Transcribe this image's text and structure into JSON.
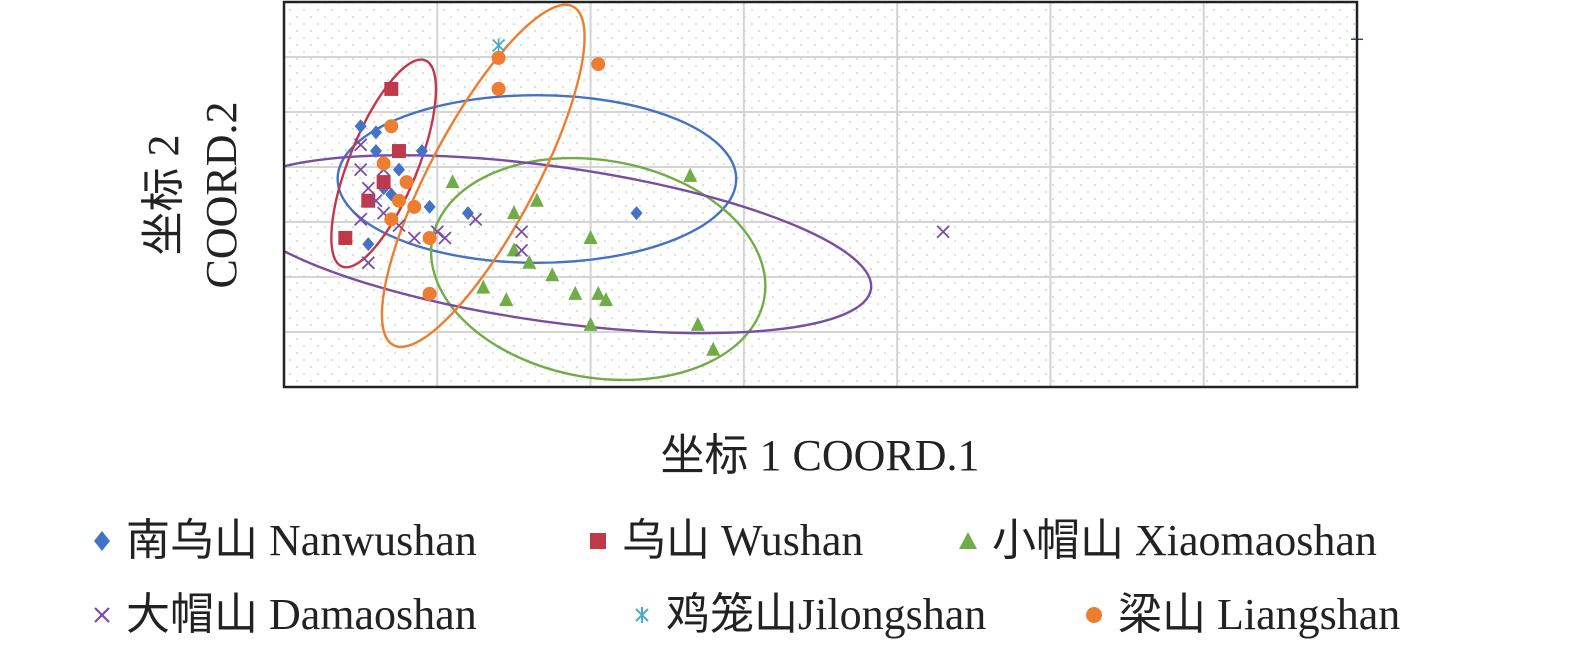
{
  "chart_data": {
    "type": "scatter",
    "xlabel": "坐标 1 COORD.1",
    "ylabel_line1": "坐标 2",
    "ylabel_line2": "COORD.2",
    "x_ticks_hidden": true,
    "y_ticks_hidden": true,
    "grid": true,
    "xlim": [
      0,
      14
    ],
    "ylim": [
      0,
      6.2
    ],
    "legend_placement": "bottom",
    "series": [
      {
        "name": "南乌山 Nanwushan",
        "color": "#4472C4",
        "marker": "diamond",
        "points": [
          [
            1.0,
            4.2
          ],
          [
            1.1,
            2.3
          ],
          [
            1.2,
            4.1
          ],
          [
            1.2,
            3.8
          ],
          [
            1.3,
            3.2
          ],
          [
            1.4,
            3.1
          ],
          [
            1.5,
            3.5
          ],
          [
            1.8,
            3.8
          ],
          [
            1.9,
            2.9
          ],
          [
            2.4,
            2.8
          ],
          [
            4.6,
            2.8
          ]
        ],
        "ellipse": {
          "cx": 3.3,
          "cy": 3.35,
          "rx": 2.6,
          "ry": 1.35,
          "angle": 0
        }
      },
      {
        "name": "乌山 Wushan",
        "color": "#C0394B",
        "marker": "square",
        "points": [
          [
            1.4,
            4.8
          ],
          [
            1.5,
            3.8
          ],
          [
            1.3,
            3.3
          ],
          [
            1.1,
            3.0
          ],
          [
            0.8,
            2.4
          ]
        ],
        "ellipse": {
          "cx": 1.3,
          "cy": 3.6,
          "rx": 1.45,
          "ry": 0.55,
          "angle": 68
        }
      },
      {
        "name": "小帽山 Xiaomaoshan",
        "color": "#70AD47",
        "marker": "triangle",
        "points": [
          [
            2.2,
            3.3
          ],
          [
            3.0,
            2.8
          ],
          [
            3.3,
            3.0
          ],
          [
            5.3,
            3.4
          ],
          [
            4.0,
            2.4
          ],
          [
            3.0,
            2.2
          ],
          [
            3.2,
            2.0
          ],
          [
            3.5,
            1.8
          ],
          [
            2.9,
            1.4
          ],
          [
            3.8,
            1.5
          ],
          [
            5.4,
            1.0
          ],
          [
            4.0,
            1.0
          ],
          [
            5.6,
            0.6
          ],
          [
            4.1,
            1.5
          ],
          [
            2.6,
            1.6
          ],
          [
            4.2,
            1.4
          ]
        ],
        "ellipse": {
          "cx": 4.1,
          "cy": 1.9,
          "rx": 2.2,
          "ry": 1.75,
          "angle": -10
        }
      },
      {
        "name": "大帽山 Damaoshan",
        "color": "#7A4DA3",
        "marker": "x",
        "points": [
          [
            1.0,
            3.5
          ],
          [
            1.1,
            3.2
          ],
          [
            1.2,
            3.0
          ],
          [
            1.3,
            2.8
          ],
          [
            1.5,
            2.6
          ],
          [
            1.7,
            2.4
          ],
          [
            2.5,
            2.7
          ],
          [
            3.1,
            2.2
          ],
          [
            3.1,
            2.5
          ],
          [
            1.1,
            2.0
          ],
          [
            2.0,
            2.5
          ],
          [
            1.0,
            3.9
          ],
          [
            1.3,
            3.5
          ],
          [
            2.1,
            2.4
          ],
          [
            1.0,
            2.7
          ],
          [
            8.6,
            2.5
          ]
        ],
        "ellipse": {
          "cx": 3.5,
          "cy": 2.3,
          "rx": 4.2,
          "ry": 1.25,
          "angle": -8
        }
      },
      {
        "name": "鸡笼山Jilongshan",
        "color": "#4BACC6",
        "marker": "asterisk",
        "points": [
          [
            2.8,
            5.5
          ]
        ],
        "ellipse": null
      },
      {
        "name": "梁山 Liangshan",
        "color": "#ED7D31",
        "marker": "circle",
        "points": [
          [
            2.8,
            5.3
          ],
          [
            4.1,
            5.2
          ],
          [
            2.8,
            4.8
          ],
          [
            1.4,
            4.2
          ],
          [
            1.3,
            3.6
          ],
          [
            1.6,
            3.3
          ],
          [
            1.5,
            3.0
          ],
          [
            1.4,
            2.7
          ],
          [
            1.7,
            2.9
          ],
          [
            1.9,
            2.4
          ],
          [
            1.9,
            1.5
          ]
        ],
        "ellipse": {
          "cx": 2.6,
          "cy": 3.4,
          "rx": 2.5,
          "ry": 0.85,
          "angle": 62
        }
      },
      {
        "name": "",
        "color": "#3B4A8C",
        "marker": "plus",
        "points": [
          [
            14.0,
            5.6
          ]
        ],
        "ellipse": null
      }
    ]
  }
}
